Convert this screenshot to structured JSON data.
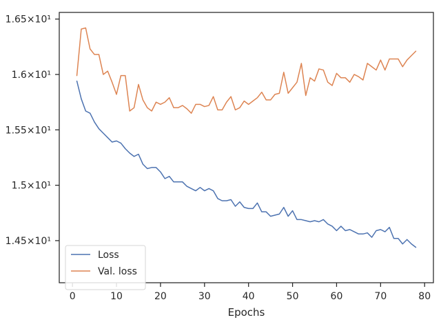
{
  "chart_data": {
    "type": "line",
    "title": "",
    "xlabel": "Epochs",
    "ylabel": "",
    "xlim": [
      -3,
      82
    ],
    "ylim": [
      14.12,
      16.56
    ],
    "xticks": [
      0,
      10,
      20,
      30,
      40,
      50,
      60,
      70,
      80
    ],
    "xtick_labels": [
      "0",
      "10",
      "20",
      "30",
      "40",
      "50",
      "60",
      "70",
      "80"
    ],
    "yticks": [
      14.5,
      15.0,
      15.5,
      16.0,
      16.5
    ],
    "ytick_labels": [
      "1.45×10¹",
      "1.5×10¹",
      "1.55×10¹",
      "1.6×10¹",
      "1.65×10¹"
    ],
    "grid": false,
    "legend_position": "lower-left",
    "x": [
      1,
      2,
      3,
      4,
      5,
      6,
      7,
      8,
      9,
      10,
      11,
      12,
      13,
      14,
      15,
      16,
      17,
      18,
      19,
      20,
      21,
      22,
      23,
      24,
      25,
      26,
      27,
      28,
      29,
      30,
      31,
      32,
      33,
      34,
      35,
      36,
      37,
      38,
      39,
      40,
      41,
      42,
      43,
      44,
      45,
      46,
      47,
      48,
      49,
      50,
      51,
      52,
      53,
      54,
      55,
      56,
      57,
      58,
      59,
      60,
      61,
      62,
      63,
      64,
      65,
      66,
      67,
      68,
      69,
      70,
      71,
      72,
      73,
      74,
      75,
      76,
      77,
      78
    ],
    "series": [
      {
        "name": "Loss",
        "color": "#4c72b0",
        "values": [
          15.94,
          15.78,
          15.67,
          15.65,
          15.57,
          15.51,
          15.47,
          15.43,
          15.39,
          15.4,
          15.38,
          15.33,
          15.29,
          15.26,
          15.28,
          15.19,
          15.15,
          15.16,
          15.16,
          15.12,
          15.06,
          15.08,
          15.03,
          15.03,
          15.03,
          14.99,
          14.97,
          14.95,
          14.98,
          14.95,
          14.97,
          14.95,
          14.88,
          14.86,
          14.86,
          14.87,
          14.81,
          14.85,
          14.8,
          14.79,
          14.79,
          14.84,
          14.76,
          14.76,
          14.72,
          14.73,
          14.74,
          14.8,
          14.72,
          14.77,
          14.69,
          14.69,
          14.68,
          14.67,
          14.68,
          14.67,
          14.69,
          14.65,
          14.63,
          14.59,
          14.63,
          14.59,
          14.6,
          14.58,
          14.56,
          14.56,
          14.57,
          14.53,
          14.59,
          14.6,
          14.58,
          14.62,
          14.52,
          14.52,
          14.47,
          14.51,
          14.47,
          14.44
        ]
      },
      {
        "name": "Val. loss",
        "color": "#dd8452",
        "values": [
          15.99,
          16.41,
          16.42,
          16.23,
          16.18,
          16.18,
          16.0,
          16.03,
          15.93,
          15.82,
          15.99,
          15.99,
          15.67,
          15.7,
          15.91,
          15.77,
          15.7,
          15.67,
          15.75,
          15.73,
          15.75,
          15.79,
          15.7,
          15.7,
          15.72,
          15.69,
          15.65,
          15.73,
          15.73,
          15.71,
          15.72,
          15.8,
          15.68,
          15.68,
          15.75,
          15.8,
          15.68,
          15.7,
          15.76,
          15.73,
          15.76,
          15.79,
          15.84,
          15.77,
          15.77,
          15.82,
          15.83,
          16.02,
          15.83,
          15.88,
          15.93,
          16.1,
          15.81,
          15.97,
          15.94,
          16.05,
          16.04,
          15.93,
          15.9,
          16.01,
          15.97,
          15.97,
          15.93,
          16.0,
          15.98,
          15.95,
          16.1,
          16.07,
          16.04,
          16.13,
          16.04,
          16.14,
          16.14,
          16.14,
          16.07,
          16.13,
          16.17,
          16.21
        ]
      }
    ]
  }
}
